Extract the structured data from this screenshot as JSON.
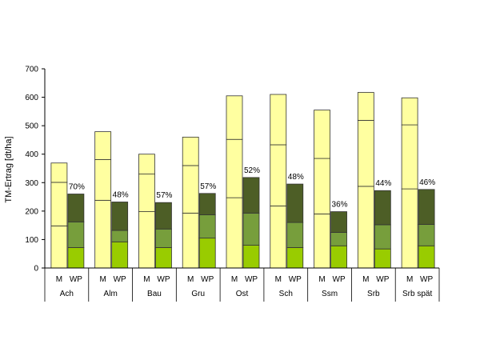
{
  "chart_data": {
    "type": "bar",
    "variant": "stacked-grouped",
    "title": "",
    "ylabel": "TM-Ertrag [dt/ha]",
    "xlabel": "",
    "ylim": [
      0,
      700
    ],
    "yticks": [
      "0",
      "100",
      "200",
      "300",
      "400",
      "500",
      "600",
      "700"
    ],
    "grid": false,
    "legend": "none",
    "categories": [
      "Ach",
      "Alm",
      "Bau",
      "Gru",
      "Ost",
      "Sch",
      "Ssm",
      "Srb",
      "Srb spät"
    ],
    "sub_labels": [
      "M",
      "WP"
    ],
    "colors": {
      "m": "#ffffa0",
      "wp_bottom": "#99cc00",
      "wp_middle": "#779e3c",
      "wp_top": "#4d5e26",
      "edge": "#333333"
    },
    "series": [
      {
        "bar": "M",
        "segment": 1,
        "values": [
          148,
          238,
          198,
          193,
          247,
          218,
          190,
          287,
          278
        ]
      },
      {
        "bar": "M",
        "segment": 2,
        "values": [
          153,
          143,
          132,
          167,
          205,
          215,
          195,
          232,
          225
        ]
      },
      {
        "bar": "M",
        "segment": 3,
        "values": [
          68,
          98,
          70,
          100,
          153,
          177,
          170,
          98,
          95
        ]
      },
      {
        "bar": "WP",
        "segment": 1,
        "values": [
          72,
          92,
          72,
          105,
          80,
          72,
          78,
          67,
          78
        ]
      },
      {
        "bar": "WP",
        "segment": 2,
        "values": [
          90,
          40,
          65,
          82,
          113,
          88,
          47,
          85,
          75
        ]
      },
      {
        "bar": "WP",
        "segment": 3,
        "values": [
          98,
          100,
          93,
          75,
          125,
          135,
          73,
          120,
          123
        ]
      }
    ],
    "annotations": [
      "70%",
      "48%",
      "57%",
      "57%",
      "52%",
      "48%",
      "36%",
      "44%",
      "46%"
    ]
  }
}
